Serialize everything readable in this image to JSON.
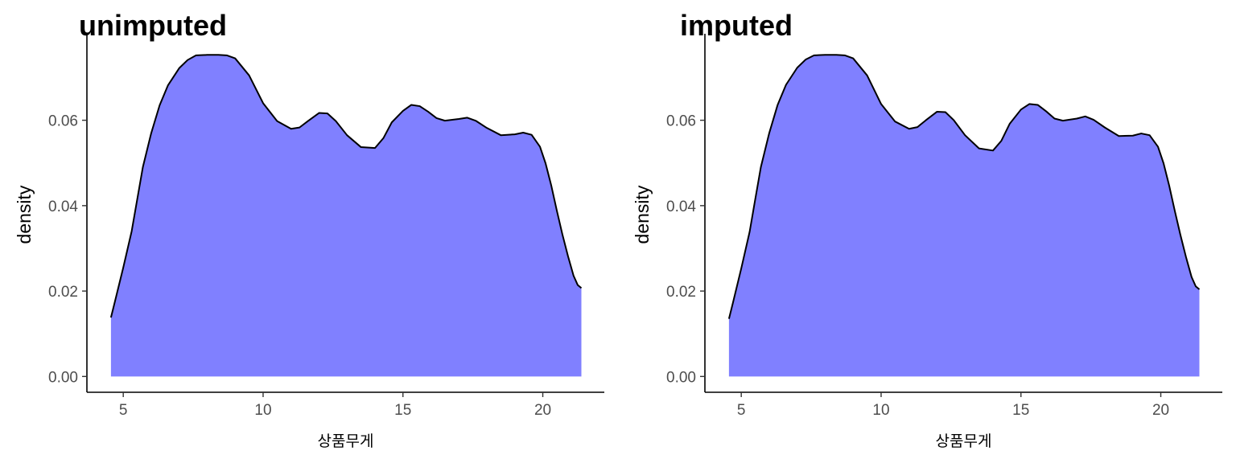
{
  "chart_data": [
    {
      "type": "area",
      "title": "unimputed",
      "xlabel": "상품무게",
      "ylabel": "density",
      "xlim": [
        3.7,
        22.2
      ],
      "ylim": [
        -0.0037,
        0.0795
      ],
      "xticks": [
        5,
        10,
        15,
        20
      ],
      "xtick_labels": [
        "5",
        "10",
        "15",
        "20"
      ],
      "yticks": [
        0,
        0.02,
        0.04,
        0.06
      ],
      "ytick_labels": [
        "0.00",
        "0.02",
        "0.04",
        "0.06"
      ],
      "fill_color": "#8080ff",
      "line_color": "#000000",
      "grid": false,
      "x": [
        4.56,
        4.7,
        5.0,
        5.3,
        5.5,
        5.7,
        6.0,
        6.3,
        6.6,
        7.0,
        7.3,
        7.6,
        8.0,
        8.4,
        8.7,
        9.0,
        9.5,
        10.0,
        10.5,
        11.0,
        11.3,
        11.6,
        12.0,
        12.3,
        12.6,
        13.0,
        13.5,
        14.0,
        14.3,
        14.6,
        15.0,
        15.3,
        15.6,
        15.9,
        16.2,
        16.5,
        17.0,
        17.3,
        17.6,
        18.0,
        18.5,
        19.0,
        19.3,
        19.6,
        19.9,
        20.1,
        20.3,
        20.5,
        20.7,
        20.9,
        21.1,
        21.25,
        21.38
      ],
      "y": [
        0.0138,
        0.0175,
        0.0255,
        0.034,
        0.0415,
        0.049,
        0.057,
        0.0635,
        0.0682,
        0.0722,
        0.0741,
        0.0752,
        0.0753,
        0.0753,
        0.0752,
        0.0745,
        0.0705,
        0.064,
        0.0598,
        0.058,
        0.0583,
        0.0598,
        0.0617,
        0.0616,
        0.0598,
        0.0565,
        0.0537,
        0.0535,
        0.0558,
        0.0595,
        0.0622,
        0.0636,
        0.0633,
        0.062,
        0.0605,
        0.0599,
        0.0603,
        0.0606,
        0.0599,
        0.0582,
        0.0565,
        0.0567,
        0.0571,
        0.0566,
        0.0538,
        0.0499,
        0.0448,
        0.0389,
        0.0333,
        0.0282,
        0.0236,
        0.0214,
        0.0207
      ]
    },
    {
      "type": "area",
      "title": "imputed",
      "xlabel": "상품무게",
      "ylabel": "density",
      "xlim": [
        3.7,
        22.2
      ],
      "ylim": [
        -0.0037,
        0.0795
      ],
      "xticks": [
        5,
        10,
        15,
        20
      ],
      "xtick_labels": [
        "5",
        "10",
        "15",
        "20"
      ],
      "yticks": [
        0,
        0.02,
        0.04,
        0.06
      ],
      "ytick_labels": [
        "0.00",
        "0.02",
        "0.04",
        "0.06"
      ],
      "fill_color": "#8080ff",
      "line_color": "#000000",
      "grid": false,
      "x": [
        4.56,
        4.7,
        5.0,
        5.3,
        5.5,
        5.7,
        6.0,
        6.3,
        6.6,
        7.0,
        7.3,
        7.6,
        8.0,
        8.4,
        8.7,
        9.0,
        9.5,
        10.0,
        10.5,
        11.0,
        11.3,
        11.6,
        12.0,
        12.3,
        12.6,
        13.0,
        13.5,
        14.0,
        14.3,
        14.6,
        15.0,
        15.3,
        15.6,
        15.9,
        16.2,
        16.5,
        17.0,
        17.3,
        17.6,
        18.0,
        18.5,
        19.0,
        19.3,
        19.6,
        19.9,
        20.1,
        20.3,
        20.5,
        20.7,
        20.9,
        21.1,
        21.25,
        21.38
      ],
      "y": [
        0.0135,
        0.0172,
        0.0253,
        0.0339,
        0.0415,
        0.049,
        0.057,
        0.0636,
        0.0683,
        0.0723,
        0.0742,
        0.0752,
        0.0753,
        0.0753,
        0.0752,
        0.0745,
        0.0705,
        0.0638,
        0.0597,
        0.058,
        0.0584,
        0.06,
        0.062,
        0.0619,
        0.06,
        0.0565,
        0.0534,
        0.0529,
        0.0552,
        0.0592,
        0.0625,
        0.0638,
        0.0636,
        0.0621,
        0.0604,
        0.0599,
        0.0604,
        0.0609,
        0.0601,
        0.0583,
        0.0563,
        0.0564,
        0.0569,
        0.0565,
        0.0538,
        0.0499,
        0.0447,
        0.0388,
        0.0332,
        0.028,
        0.0233,
        0.0211,
        0.0204
      ]
    }
  ]
}
